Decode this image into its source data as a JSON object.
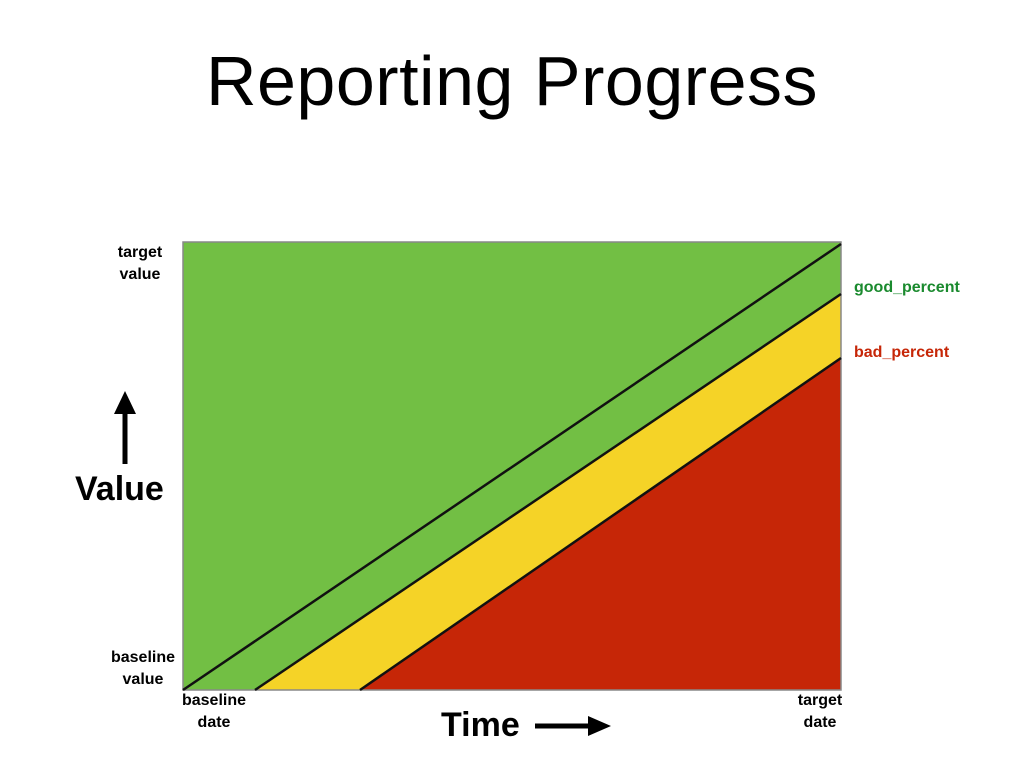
{
  "slide": {
    "title": "Reporting Progress"
  },
  "y_axis": {
    "label": "Value",
    "top_label": [
      "target",
      "value"
    ],
    "bottom_label": [
      "baseline",
      "value"
    ]
  },
  "x_axis": {
    "label": "Time",
    "left_label": [
      "baseline",
      "date"
    ],
    "right_label": [
      "target",
      "date"
    ]
  },
  "thresholds": {
    "good_label": "good_percent",
    "bad_label": "bad_percent"
  },
  "zones": {
    "good": {
      "color": "#72bf44"
    },
    "warning": {
      "color": "#f5d327"
    },
    "bad": {
      "color": "#c62607"
    }
  },
  "colors": {
    "good_label": "#1a8a2e",
    "bad_label": "#c62607",
    "line": "#111111",
    "frame": "#888888"
  }
}
